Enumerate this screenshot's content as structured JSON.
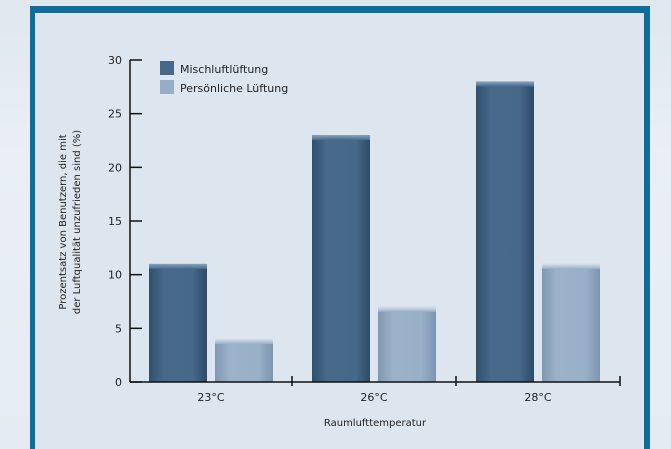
{
  "chart_data": {
    "type": "bar",
    "categories": [
      "23°C",
      "26°C",
      "28°C"
    ],
    "series": [
      {
        "name": "Mischluftlüftung",
        "values": [
          11,
          23,
          28
        ],
        "color": "#46698a"
      },
      {
        "name": "Persönliche Lüftung",
        "values": [
          4,
          7,
          11
        ],
        "color": "#95adc6"
      }
    ],
    "xlabel": "Raumlufttemperatur",
    "ylabel_line1": "Prozentsatz von Benutzern, die mit",
    "ylabel_line2": "der Luftqualität unzufrieden sind (%)",
    "ylim": [
      0,
      30
    ],
    "yticks": [
      0,
      5,
      10,
      15,
      20,
      25,
      30
    ],
    "legend_position": "top-left",
    "grid": false
  }
}
